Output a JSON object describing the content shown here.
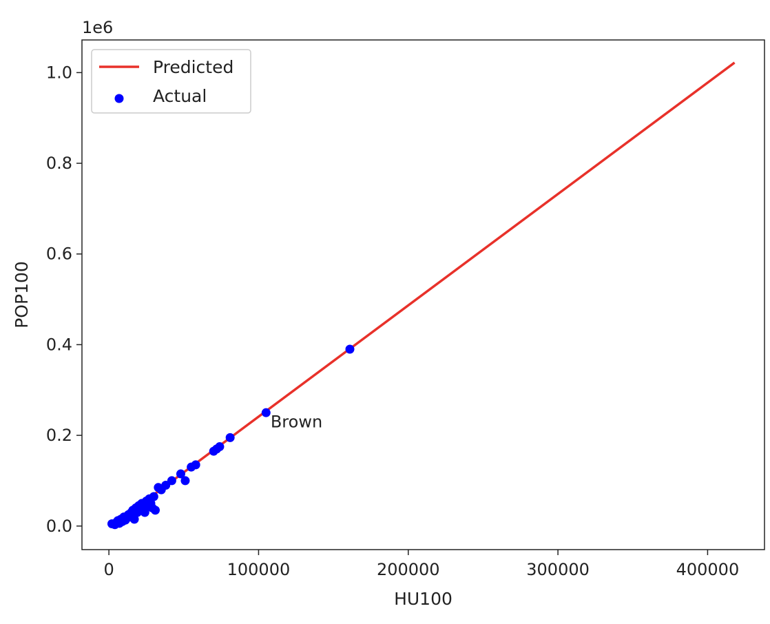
{
  "chart_data": {
    "type": "scatter",
    "xlabel": "HU100",
    "ylabel": "POP100",
    "y_offset_label": "1e6",
    "xlim": [
      -18000,
      438000
    ],
    "ylim": [
      -0.052,
      1.072
    ],
    "xticks": [
      0,
      100000,
      200000,
      300000,
      400000
    ],
    "xtick_labels": [
      "0",
      "100000",
      "200000",
      "300000",
      "400000"
    ],
    "yticks": [
      0.0,
      0.2,
      0.4,
      0.6,
      0.8,
      1.0
    ],
    "ytick_labels": [
      "0.0",
      "0.2",
      "0.4",
      "0.6",
      "0.8",
      "1.0"
    ],
    "grid": false,
    "legend": {
      "placement": "top-left",
      "entries": [
        {
          "label": "Predicted",
          "marker": "line"
        },
        {
          "label": "Actual",
          "marker": "dot"
        }
      ]
    },
    "series": [
      {
        "name": "Predicted",
        "type": "line",
        "color": "#e8312a",
        "x": [
          3000,
          418000
        ],
        "y": [
          0.003,
          1.022
        ]
      },
      {
        "name": "Actual",
        "type": "scatter",
        "color": "#0000ff",
        "x": [
          2000,
          4000,
          5000,
          6000,
          7000,
          8000,
          9000,
          10000,
          11000,
          12000,
          13000,
          14000,
          15000,
          16000,
          17000,
          18000,
          19000,
          20000,
          21000,
          22000,
          23000,
          24000,
          25000,
          26000,
          27000,
          28000,
          29000,
          30000,
          31000,
          33000,
          35000,
          38000,
          42000,
          48000,
          51000,
          55000,
          58000,
          70000,
          72000,
          74000,
          81000,
          105000,
          161000
        ],
        "y": [
          0.005,
          0.003,
          0.008,
          0.012,
          0.006,
          0.015,
          0.01,
          0.02,
          0.013,
          0.018,
          0.025,
          0.02,
          0.03,
          0.035,
          0.015,
          0.04,
          0.03,
          0.045,
          0.035,
          0.05,
          0.04,
          0.03,
          0.055,
          0.045,
          0.06,
          0.05,
          0.04,
          0.065,
          0.035,
          0.085,
          0.08,
          0.09,
          0.1,
          0.115,
          0.1,
          0.13,
          0.135,
          0.165,
          0.17,
          0.175,
          0.195,
          0.25,
          0.39
        ]
      }
    ],
    "annotations": [
      {
        "text": "Brown",
        "x": 108000,
        "y": 0.23
      }
    ]
  }
}
